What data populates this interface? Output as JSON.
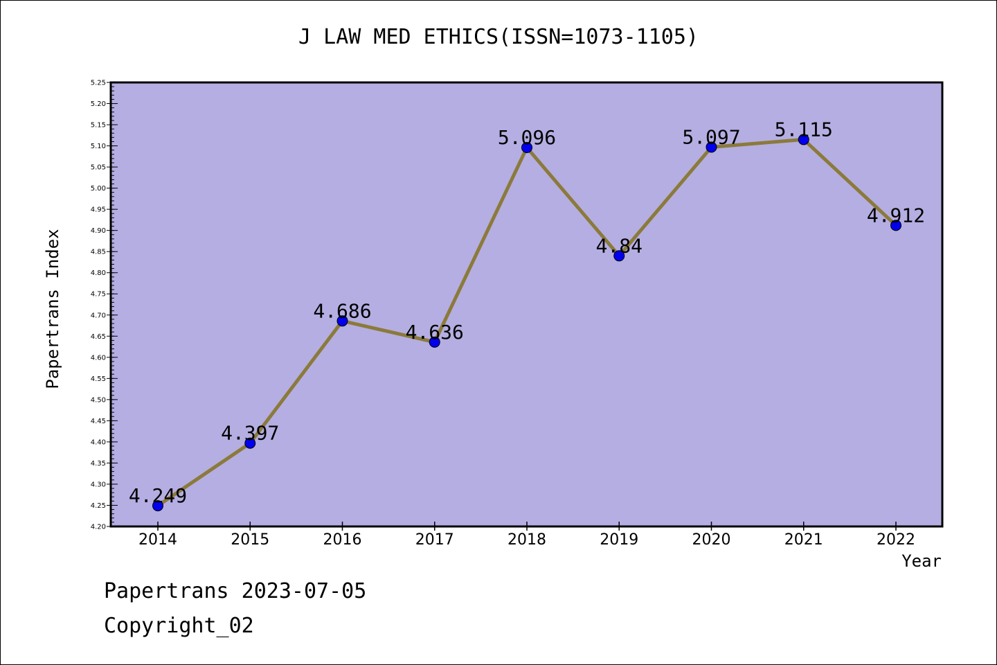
{
  "chart_data": {
    "type": "line",
    "title": "J LAW MED ETHICS(ISSN=1073-1105)",
    "xlabel": "Year",
    "ylabel": "Papertrans Index",
    "categories": [
      "2014",
      "2015",
      "2016",
      "2017",
      "2018",
      "2019",
      "2020",
      "2021",
      "2022"
    ],
    "series": [
      {
        "values": [
          4.249,
          4.397,
          4.686,
          4.636,
          5.096,
          4.84,
          5.097,
          5.115,
          4.912
        ],
        "labels": [
          "4.249",
          "4.397",
          "4.686",
          "4.636",
          "5.096",
          "4.84",
          "5.097",
          "5.115",
          "4.912"
        ]
      }
    ],
    "ylim": [
      4.2,
      5.25
    ],
    "y_ticks": [
      "4.20",
      "4.25",
      "4.30",
      "4.35",
      "4.40",
      "4.45",
      "4.50",
      "4.55",
      "4.60",
      "4.65",
      "4.70",
      "4.75",
      "4.80",
      "4.85",
      "4.90",
      "4.95",
      "5.00",
      "5.05",
      "5.10",
      "5.15",
      "5.20",
      "5.25"
    ],
    "grid": false,
    "legend": "none",
    "colors": {
      "plot_background": "#b4aee2",
      "line": "#8b7a3a",
      "marker": "#0000ee",
      "axis": "#000000"
    }
  },
  "footer": {
    "date_line": "Papertrans 2023-07-05",
    "copyright_line": "Copyright_02"
  }
}
